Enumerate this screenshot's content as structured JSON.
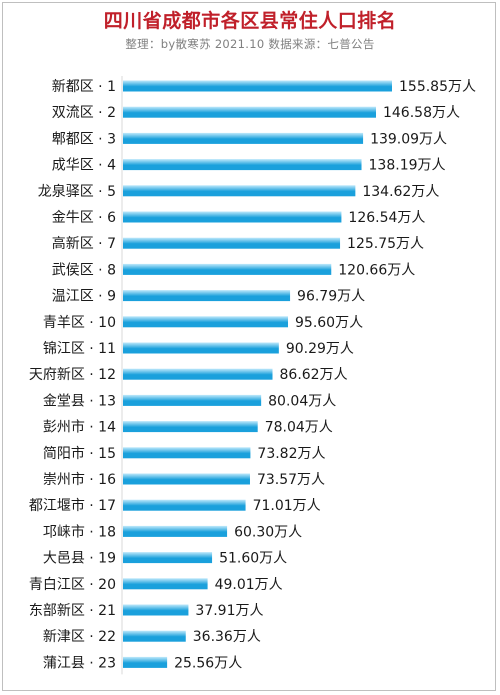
{
  "header": {
    "title": "四川省成都市各区县常住人口排名",
    "subtitle": "整理：by散寒苏  2021.10  数据来源：七普公告"
  },
  "colors": {
    "title": "#c0202a",
    "bar_light": "#bfe9fb",
    "bar_dark": "#1aa0dc",
    "axis": "#d9d9d9"
  },
  "chart_data": {
    "type": "bar",
    "orientation": "horizontal",
    "title": "四川省成都市各区县常住人口排名",
    "subtitle": "整理：by散寒苏  2021.10  数据来源：七普公告",
    "categories": [
      "新都区 · 1",
      "双流区 · 2",
      "郫都区 · 3",
      "成华区 · 4",
      "龙泉驿区 · 5",
      "金牛区 · 6",
      "高新区 · 7",
      "武侯区 · 8",
      "温江区 · 9",
      "青羊区 · 10",
      "锦江区 · 11",
      "天府新区 · 12",
      "金堂县 · 13",
      "彭州市 · 14",
      "简阳市 · 15",
      "崇州市 · 16",
      "都江堰市 · 17",
      "邛崃市 · 18",
      "大邑县 · 19",
      "青白江区 · 20",
      "东部新区 · 21",
      "新津区 · 22",
      "蒲江县 · 23"
    ],
    "values": [
      155.85,
      146.58,
      139.09,
      138.19,
      134.62,
      126.54,
      125.75,
      120.66,
      96.79,
      95.6,
      90.29,
      86.62,
      80.04,
      78.04,
      73.82,
      73.57,
      71.01,
      60.3,
      51.6,
      49.01,
      37.91,
      36.36,
      25.56
    ],
    "value_labels": [
      "155.85万人",
      "146.58万人",
      "139.09万人",
      "138.19万人",
      "134.62万人",
      "126.54万人",
      "125.75万人",
      "120.66万人",
      "96.79万人",
      "95.60万人",
      "90.29万人",
      "86.62万人",
      "80.04万人",
      "78.04万人",
      "73.82万人",
      "73.57万人",
      "71.01万人",
      "60.30万人",
      "51.60万人",
      "49.01万人",
      "37.91万人",
      "36.36万人",
      "25.56万人"
    ],
    "xlim": [
      0,
      180
    ],
    "grid": false,
    "legend": "none"
  }
}
